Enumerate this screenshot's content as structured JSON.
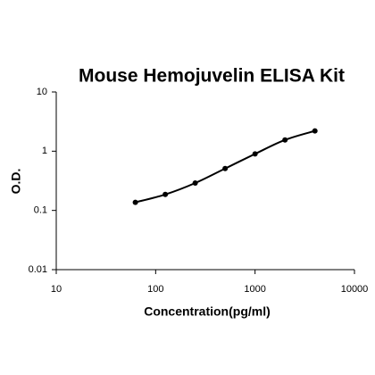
{
  "chart_data": {
    "type": "scatter",
    "title": "Mouse Hemojuvelin ELISA Kit",
    "x_label": "Concentration(pg/ml)",
    "y_label": "O.D.",
    "x": [
      62.5,
      125,
      250,
      500,
      1000,
      2000,
      4000
    ],
    "values": [
      0.137,
      0.186,
      0.29,
      0.51,
      0.9,
      1.55,
      2.2
    ],
    "color": "#000000",
    "line": true,
    "xscale": "log",
    "yscale": "log",
    "xlim": [
      10,
      10000
    ],
    "xticks": [
      10,
      100,
      1000,
      10000
    ],
    "ylim": [
      0.01,
      10
    ],
    "yticks": [
      0.01,
      0.1,
      1,
      10
    ],
    "grid": false
  }
}
